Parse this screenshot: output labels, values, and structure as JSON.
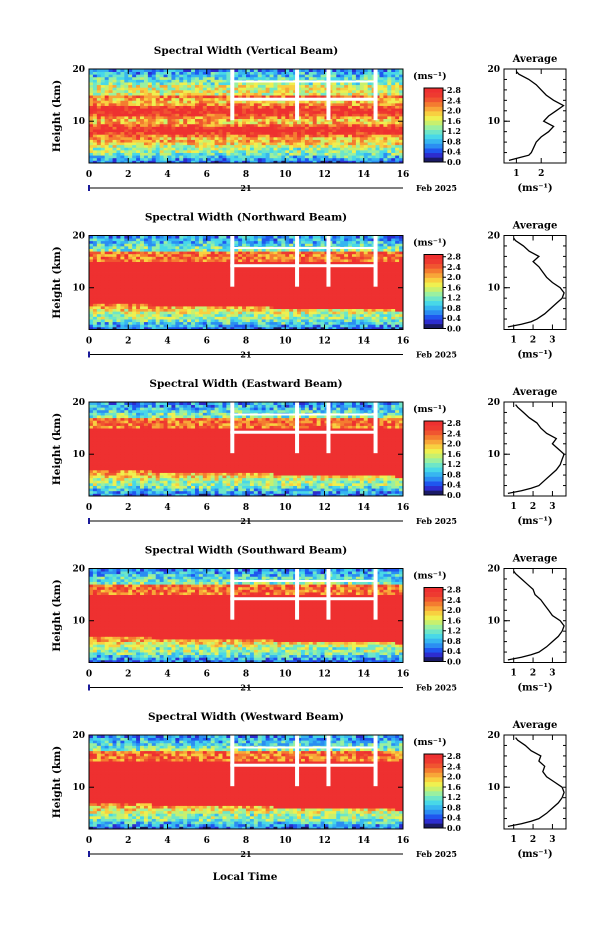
{
  "figure": {
    "xlabel_bottom": "Local Time",
    "date_day": "21",
    "date_month_year": "Feb 2025",
    "colorbar_unit": "(ms⁻¹)",
    "colorbar_ticks": [
      "0.0",
      "0.4",
      "0.8",
      "1.2",
      "1.6",
      "2.0",
      "2.4",
      "2.8"
    ],
    "colorbar_colors": [
      "#1a1a66",
      "#2d2dcf",
      "#1f56ef",
      "#2b8ef2",
      "#37b6f0",
      "#48d8e8",
      "#6ee6c8",
      "#9af0a0",
      "#c8f06e",
      "#eff050",
      "#f8d040",
      "#f8a638",
      "#f47c30",
      "#f05530",
      "#ee3a30",
      "#ee3030"
    ],
    "average_title": "Average",
    "average_xlabel": "(ms⁻¹)",
    "panel_ylabel": "Height (km)"
  },
  "chart_data": [
    {
      "type": "heatmap",
      "title": "Spectral Width (Vertical Beam)",
      "xlabel": "",
      "ylabel": "Height (km)",
      "xlim": [
        0,
        16
      ],
      "ylim": [
        2,
        20
      ],
      "x_ticks": [
        "0",
        "2",
        "4",
        "6",
        "8",
        "10",
        "12",
        "14",
        "16"
      ],
      "y_ticks": [
        "10",
        "20"
      ],
      "gaps_local_time": [
        7.2,
        10.5,
        12.1,
        14.5
      ],
      "profile": {
        "title": "Average",
        "xlabel": "(ms⁻¹)",
        "xlim": [
          0.5,
          3.0
        ],
        "x_ticks": [
          "1",
          "2"
        ],
        "y_ticks": [
          "10",
          "20"
        ],
        "height": [
          2.5,
          3.0,
          3.5,
          4.0,
          5.0,
          6.0,
          7.0,
          8.0,
          9.0,
          10.0,
          11.0,
          12.0,
          13.0,
          14.0,
          15.0,
          16.0,
          17.0,
          18.0,
          19.0,
          19.5
        ],
        "width": [
          0.7,
          1.1,
          1.5,
          1.6,
          1.7,
          1.8,
          2.0,
          2.3,
          2.5,
          2.1,
          2.3,
          2.6,
          2.9,
          2.5,
          2.2,
          2.0,
          1.8,
          1.5,
          1.1,
          1.0
        ]
      }
    },
    {
      "type": "heatmap",
      "title": "Spectral Width (Northward Beam)",
      "xlabel": "",
      "ylabel": "Height (km)",
      "xlim": [
        0,
        16
      ],
      "ylim": [
        2,
        20
      ],
      "x_ticks": [
        "0",
        "2",
        "4",
        "6",
        "8",
        "10",
        "12",
        "14",
        "16"
      ],
      "y_ticks": [
        "10",
        "20"
      ],
      "gaps_local_time": [
        7.2,
        10.5,
        12.1,
        14.5
      ],
      "profile": {
        "title": "Average",
        "xlabel": "(ms⁻¹)",
        "xlim": [
          0.5,
          3.7
        ],
        "x_ticks": [
          "1",
          "2",
          "3"
        ],
        "y_ticks": [
          "10",
          "20"
        ],
        "height": [
          2.5,
          3.0,
          3.5,
          4.0,
          5.0,
          6.0,
          7.0,
          8.0,
          9.0,
          10.0,
          11.0,
          12.0,
          13.0,
          14.0,
          15.0,
          16.0,
          17.0,
          18.0,
          19.0,
          19.5
        ],
        "width": [
          0.7,
          1.4,
          1.9,
          2.2,
          2.6,
          2.9,
          3.2,
          3.5,
          3.6,
          3.4,
          3.0,
          2.7,
          2.5,
          2.3,
          2.0,
          2.3,
          1.8,
          1.5,
          1.1,
          1.0
        ]
      }
    },
    {
      "type": "heatmap",
      "title": "Spectral Width (Eastward Beam)",
      "xlabel": "",
      "ylabel": "Height (km)",
      "xlim": [
        0,
        16
      ],
      "ylim": [
        2,
        20
      ],
      "x_ticks": [
        "0",
        "2",
        "4",
        "6",
        "8",
        "10",
        "12",
        "14",
        "16"
      ],
      "y_ticks": [
        "10",
        "20"
      ],
      "gaps_local_time": [
        7.2,
        10.5,
        12.1,
        14.5
      ],
      "profile": {
        "title": "Average",
        "xlabel": "(ms⁻¹)",
        "xlim": [
          0.5,
          3.7
        ],
        "x_ticks": [
          "1",
          "2",
          "3"
        ],
        "y_ticks": [
          "10",
          "20"
        ],
        "height": [
          2.5,
          3.0,
          3.5,
          4.0,
          5.0,
          6.0,
          7.0,
          8.0,
          9.0,
          10.0,
          11.0,
          12.0,
          13.0,
          14.0,
          15.0,
          16.0,
          17.0,
          18.0,
          19.0,
          19.5
        ],
        "width": [
          0.7,
          1.4,
          1.9,
          2.3,
          2.6,
          2.9,
          3.2,
          3.4,
          3.5,
          3.6,
          3.3,
          3.0,
          3.2,
          2.7,
          2.4,
          2.2,
          1.8,
          1.5,
          1.2,
          1.1
        ]
      }
    },
    {
      "type": "heatmap",
      "title": "Spectral Width (Southward Beam)",
      "xlabel": "",
      "ylabel": "Height (km)",
      "xlim": [
        0,
        16
      ],
      "ylim": [
        2,
        20
      ],
      "x_ticks": [
        "0",
        "2",
        "4",
        "6",
        "8",
        "10",
        "12",
        "14",
        "16"
      ],
      "y_ticks": [
        "10",
        "20"
      ],
      "gaps_local_time": [
        7.2,
        10.5,
        12.1,
        14.5
      ],
      "profile": {
        "title": "Average",
        "xlabel": "(ms⁻¹)",
        "xlim": [
          0.5,
          3.7
        ],
        "x_ticks": [
          "1",
          "2",
          "3"
        ],
        "y_ticks": [
          "10",
          "20"
        ],
        "height": [
          2.5,
          3.0,
          3.5,
          4.0,
          5.0,
          6.0,
          7.0,
          8.0,
          9.0,
          10.0,
          11.0,
          12.0,
          13.0,
          14.0,
          15.0,
          16.0,
          17.0,
          18.0,
          19.0,
          19.5
        ],
        "width": [
          0.7,
          1.4,
          1.9,
          2.3,
          2.7,
          3.0,
          3.3,
          3.5,
          3.6,
          3.4,
          3.0,
          2.8,
          2.6,
          2.4,
          2.1,
          2.0,
          1.7,
          1.4,
          1.1,
          1.0
        ]
      }
    },
    {
      "type": "heatmap",
      "title": "Spectral Width (Westward Beam)",
      "xlabel": "Local Time",
      "ylabel": "Height (km)",
      "xlim": [
        0,
        16
      ],
      "ylim": [
        2,
        20
      ],
      "x_ticks": [
        "0",
        "2",
        "4",
        "6",
        "8",
        "10",
        "12",
        "14",
        "16"
      ],
      "y_ticks": [
        "10",
        "20"
      ],
      "gaps_local_time": [
        7.2,
        10.5,
        12.1,
        14.5
      ],
      "profile": {
        "title": "Average",
        "xlabel": "(ms⁻¹)",
        "xlim": [
          0.5,
          3.7
        ],
        "x_ticks": [
          "1",
          "2",
          "3"
        ],
        "y_ticks": [
          "10",
          "20"
        ],
        "height": [
          2.5,
          3.0,
          3.5,
          4.0,
          5.0,
          6.0,
          7.0,
          8.0,
          9.0,
          10.0,
          11.0,
          12.0,
          13.0,
          14.0,
          15.0,
          16.0,
          17.0,
          18.0,
          19.0,
          19.5
        ],
        "width": [
          0.7,
          1.4,
          1.9,
          2.3,
          2.7,
          3.0,
          3.3,
          3.5,
          3.6,
          3.5,
          3.1,
          2.7,
          2.5,
          2.6,
          2.3,
          2.4,
          1.9,
          1.6,
          1.2,
          1.1
        ]
      }
    }
  ]
}
